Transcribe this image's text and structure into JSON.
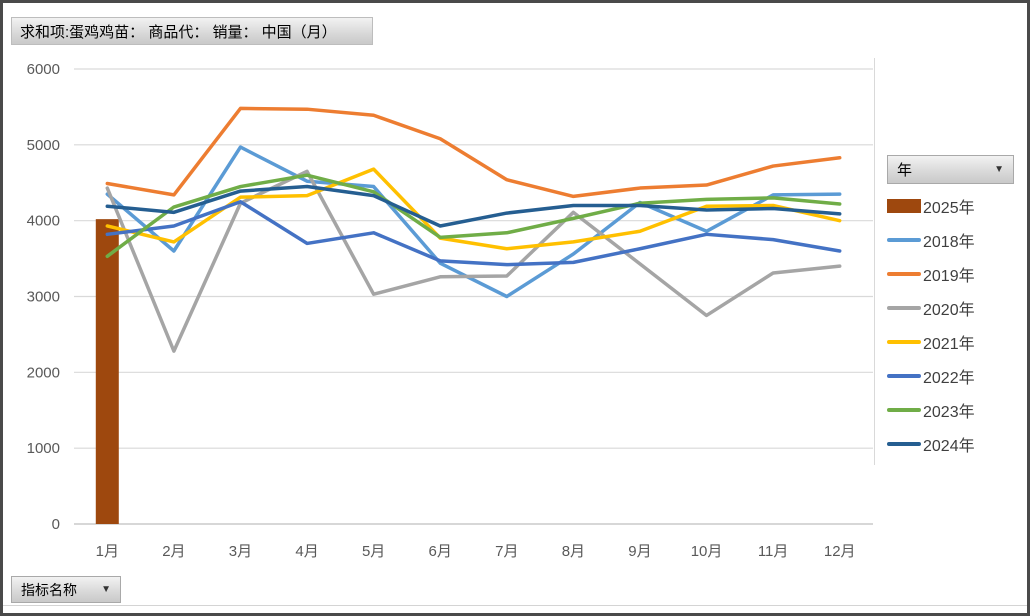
{
  "title": "求和项:蛋鸡鸡苗： 商品代： 销量： 中国（月）",
  "field_buttons": {
    "legend_field_label": "年",
    "axis_field_label": "指标名称",
    "dropdown_arrow": "▼"
  },
  "chart_data": {
    "type": "combo",
    "subtype": "bar+line",
    "grid": true,
    "legend_position": "right",
    "categories": [
      "1月",
      "2月",
      "3月",
      "4月",
      "5月",
      "6月",
      "7月",
      "8月",
      "9月",
      "10月",
      "11月",
      "12月"
    ],
    "y_axis": {
      "min": 0,
      "max": 6000,
      "step": 1000,
      "tick_labels": [
        "0",
        "1000",
        "2000",
        "3000",
        "4000",
        "5000",
        "6000"
      ]
    },
    "series": [
      {
        "name": "2025年",
        "type": "bar",
        "color": "#9E480E",
        "values": [
          4020,
          null,
          null,
          null,
          null,
          null,
          null,
          null,
          null,
          null,
          null,
          null
        ]
      },
      {
        "name": "2018年",
        "type": "line",
        "color": "#5B9BD5",
        "values": [
          4350,
          3600,
          4970,
          4520,
          4450,
          3440,
          3000,
          3560,
          4240,
          3860,
          4340,
          4350
        ]
      },
      {
        "name": "2019年",
        "type": "line",
        "color": "#ED7D31",
        "values": [
          4490,
          4340,
          5480,
          5470,
          5390,
          5080,
          4540,
          4320,
          4430,
          4470,
          4720,
          4830
        ]
      },
      {
        "name": "2020年",
        "type": "line",
        "color": "#A5A5A5",
        "values": [
          4430,
          2280,
          4230,
          4650,
          3030,
          3260,
          3270,
          4110,
          3430,
          2750,
          3310,
          3400
        ]
      },
      {
        "name": "2021年",
        "type": "line",
        "color": "#FFC000",
        "values": [
          3930,
          3720,
          4310,
          4330,
          4680,
          3770,
          3630,
          3720,
          3860,
          4190,
          4200,
          4000
        ]
      },
      {
        "name": "2022年",
        "type": "line",
        "color": "#4472C4",
        "values": [
          3820,
          3930,
          4250,
          3700,
          3840,
          3470,
          3420,
          3450,
          3630,
          3820,
          3750,
          3600
        ]
      },
      {
        "name": "2023年",
        "type": "line",
        "color": "#70AD47",
        "values": [
          3530,
          4180,
          4450,
          4600,
          4380,
          3780,
          3840,
          4030,
          4230,
          4280,
          4300,
          4220
        ]
      },
      {
        "name": "2024年",
        "type": "line",
        "color": "#255E91",
        "values": [
          4190,
          4110,
          4390,
          4450,
          4330,
          3930,
          4100,
          4200,
          4200,
          4140,
          4160,
          4090
        ]
      }
    ],
    "axis_text_color": "#595959",
    "gridline_color": "#D9D9D9",
    "axis_line_color": "#BFBFBF"
  }
}
